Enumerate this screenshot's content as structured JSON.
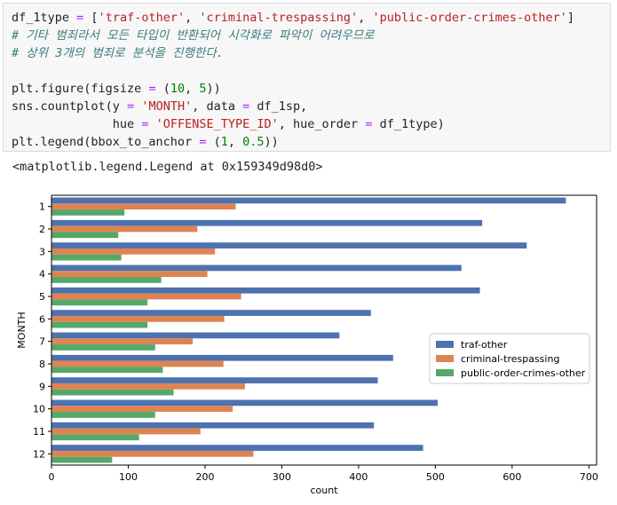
{
  "code_cell": {
    "lines": [
      [
        {
          "t": "df_1type "
        },
        {
          "t": "=",
          "c": "c-op"
        },
        {
          "t": " ["
        },
        {
          "t": "'traf-other'",
          "c": "c-str"
        },
        {
          "t": ", "
        },
        {
          "t": "'criminal-trespassing'",
          "c": "c-str"
        },
        {
          "t": ", "
        },
        {
          "t": "'public-order-crimes-other'",
          "c": "c-str"
        },
        {
          "t": "]"
        }
      ],
      [
        {
          "t": "# 기타 범죄라서 모든 타입이 반환되어 시각화로 파악이 어려우므로",
          "c": "c-cmt"
        }
      ],
      [
        {
          "t": "# 상위 3개의 범죄로 분석을 진행한다.",
          "c": "c-cmt"
        }
      ],
      [
        {
          "t": ""
        }
      ],
      [
        {
          "t": "plt.figure(figsize "
        },
        {
          "t": "=",
          "c": "c-op"
        },
        {
          "t": " ("
        },
        {
          "t": "10",
          "c": "c-num"
        },
        {
          "t": ", "
        },
        {
          "t": "5",
          "c": "c-num"
        },
        {
          "t": "))"
        }
      ],
      [
        {
          "t": "sns.countplot(y "
        },
        {
          "t": "=",
          "c": "c-op"
        },
        {
          "t": " "
        },
        {
          "t": "'MONTH'",
          "c": "c-str"
        },
        {
          "t": ", data "
        },
        {
          "t": "=",
          "c": "c-op"
        },
        {
          "t": " df_1sp,"
        }
      ],
      [
        {
          "t": "              hue "
        },
        {
          "t": "=",
          "c": "c-op"
        },
        {
          "t": " "
        },
        {
          "t": "'OFFENSE_TYPE_ID'",
          "c": "c-str"
        },
        {
          "t": ", hue_order "
        },
        {
          "t": "=",
          "c": "c-op"
        },
        {
          "t": " df_1type)"
        }
      ],
      [
        {
          "t": "plt.legend(bbox_to_anchor "
        },
        {
          "t": "=",
          "c": "c-op"
        },
        {
          "t": " ("
        },
        {
          "t": "1",
          "c": "c-num"
        },
        {
          "t": ", "
        },
        {
          "t": "0.5",
          "c": "c-num"
        },
        {
          "t": "))"
        }
      ]
    ]
  },
  "output_text": "<matplotlib.legend.Legend at 0x159349d98d0>",
  "chart_data": {
    "type": "bar",
    "orientation": "horizontal",
    "categories": [
      "1",
      "2",
      "3",
      "4",
      "5",
      "6",
      "7",
      "8",
      "9",
      "10",
      "11",
      "12"
    ],
    "series": [
      {
        "name": "traf-other",
        "color": "#4c72b0",
        "values": [
          670,
          561,
          619,
          534,
          558,
          416,
          375,
          445,
          425,
          503,
          420,
          484
        ]
      },
      {
        "name": "criminal-trespassing",
        "color": "#dd8452",
        "values": [
          240,
          190,
          213,
          203,
          247,
          225,
          184,
          224,
          252,
          236,
          194,
          263
        ]
      },
      {
        "name": "public-order-crimes-other",
        "color": "#55a868",
        "values": [
          95,
          87,
          91,
          143,
          125,
          125,
          135,
          145,
          159,
          135,
          114,
          79
        ]
      }
    ],
    "xlabel": "count",
    "ylabel": "MONTH",
    "xlim": [
      0,
      710
    ],
    "xticks": [
      0,
      100,
      200,
      300,
      400,
      500,
      600,
      700
    ],
    "legend_position": "right",
    "grid": false
  }
}
